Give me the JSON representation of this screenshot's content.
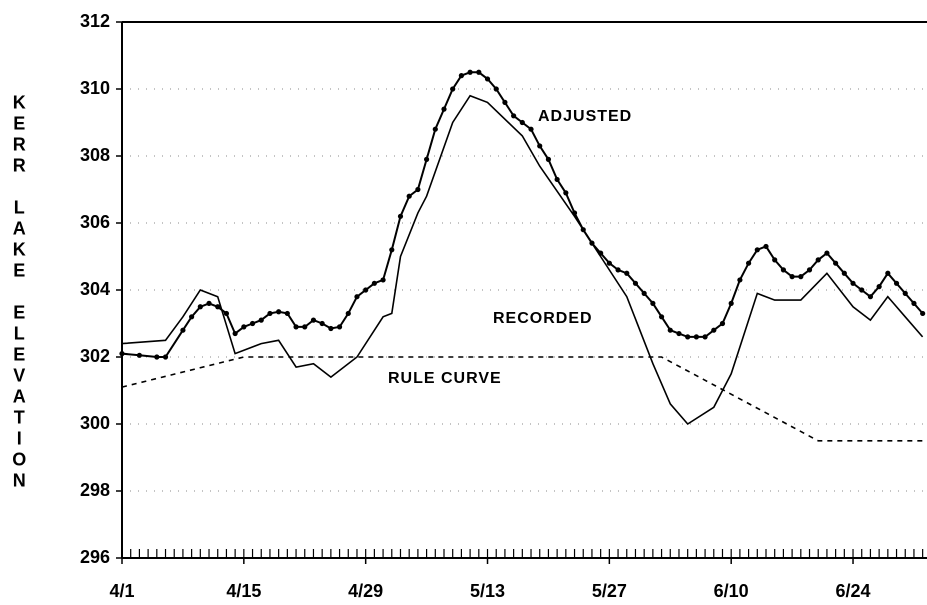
{
  "chart_data": {
    "type": "line",
    "ylabel": "KERR LAKE ELEVATION",
    "xlim": [
      0,
      92.5
    ],
    "xticks": [
      {
        "value": 0,
        "label": "4/1"
      },
      {
        "value": 14,
        "label": "4/15"
      },
      {
        "value": 28,
        "label": "4/29"
      },
      {
        "value": 42,
        "label": "5/13"
      },
      {
        "value": 56,
        "label": "5/27"
      },
      {
        "value": 70,
        "label": "6/10"
      },
      {
        "value": 84,
        "label": "6/24"
      }
    ],
    "ylim": [
      296,
      312
    ],
    "yticks": [
      296,
      298,
      300,
      302,
      304,
      306,
      308,
      310,
      312
    ],
    "grid": true,
    "series": [
      {
        "name": "ADJUSTED",
        "color": "#000000",
        "style": "solid-dots",
        "x": [
          0,
          2,
          4,
          5,
          7,
          8,
          9,
          10,
          11,
          12,
          13,
          14,
          15,
          16,
          17,
          18,
          19,
          20,
          21,
          22,
          23,
          24,
          25,
          26,
          27,
          28,
          29,
          30,
          31,
          32,
          33,
          34,
          35,
          36,
          37,
          38,
          39,
          40,
          41,
          42,
          43,
          44,
          45,
          46,
          47,
          48,
          49,
          50,
          51,
          52,
          53,
          54,
          55,
          56,
          57,
          58,
          59,
          60,
          61,
          62,
          63,
          64,
          65,
          66,
          67,
          68,
          69,
          70,
          71,
          72,
          73,
          74,
          75,
          76,
          77,
          78,
          79,
          80,
          81,
          82,
          83,
          84,
          85,
          86,
          87,
          88,
          89,
          90,
          91,
          92
        ],
        "values": [
          302.1,
          302.05,
          302.0,
          302.0,
          302.8,
          303.2,
          303.5,
          303.6,
          303.5,
          303.3,
          302.7,
          302.9,
          303.0,
          303.1,
          303.3,
          303.35,
          303.3,
          302.9,
          302.9,
          303.1,
          303.0,
          302.85,
          302.9,
          303.3,
          303.8,
          304.0,
          304.2,
          304.3,
          305.2,
          306.2,
          306.8,
          307.0,
          307.9,
          308.8,
          309.4,
          310.0,
          310.4,
          310.5,
          310.5,
          310.3,
          310.0,
          309.6,
          309.2,
          309.0,
          308.8,
          308.3,
          307.9,
          307.3,
          306.9,
          306.3,
          305.8,
          305.4,
          305.1,
          304.8,
          304.6,
          304.5,
          304.2,
          303.9,
          303.6,
          303.2,
          302.8,
          302.7,
          302.6,
          302.6,
          302.6,
          302.8,
          303.0,
          303.6,
          304.3,
          304.8,
          305.2,
          305.3,
          304.9,
          304.6,
          304.4,
          304.4,
          304.6,
          304.9,
          305.1,
          304.8,
          304.5,
          304.2,
          304.0,
          303.8,
          304.1,
          304.5,
          304.2,
          303.9,
          303.6,
          303.3
        ]
      },
      {
        "name": "RECORDED",
        "color": "#000000",
        "style": "solid",
        "x": [
          0,
          5,
          7,
          9,
          11,
          13,
          16,
          18,
          20,
          22,
          24,
          27,
          30,
          31,
          32,
          34,
          35,
          38,
          40,
          42,
          46,
          48,
          52,
          55,
          58,
          61,
          63,
          65,
          68,
          70,
          73,
          75,
          78,
          81,
          84,
          86,
          88,
          90,
          92
        ],
        "values": [
          302.4,
          302.5,
          303.2,
          304.0,
          303.8,
          302.1,
          302.4,
          302.5,
          301.7,
          301.8,
          301.4,
          302.0,
          303.2,
          303.3,
          305.0,
          306.3,
          306.8,
          309.0,
          309.8,
          309.6,
          308.6,
          307.7,
          306.2,
          305.0,
          303.8,
          301.8,
          300.6,
          300.0,
          300.5,
          301.5,
          303.9,
          303.7,
          303.7,
          304.5,
          303.5,
          303.1,
          303.8,
          303.2,
          302.6
        ]
      },
      {
        "name": "RULE CURVE",
        "color": "#000000",
        "style": "dashed",
        "x": [
          0,
          14,
          62,
          80,
          92
        ],
        "values": [
          301.1,
          302.0,
          302.0,
          299.5,
          299.5
        ]
      }
    ]
  }
}
